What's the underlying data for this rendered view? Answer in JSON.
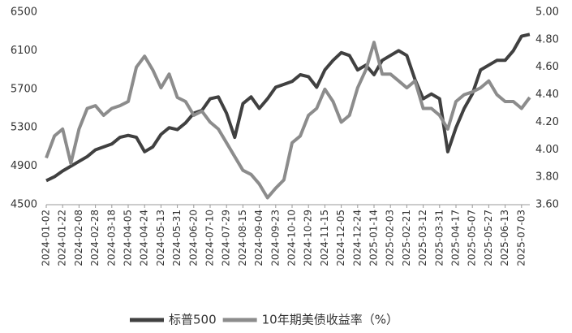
{
  "chart_data": {
    "type": "line",
    "categories": [
      "2024-01-02",
      null,
      "2024-01-22",
      null,
      "2024-02-08",
      null,
      "2024-02-28",
      null,
      "2024-03-18",
      null,
      "2024-04-05",
      null,
      "2024-04-24",
      null,
      "2024-05-13",
      null,
      "2024-05-31",
      null,
      "2024-06-20",
      null,
      "2024-07-10",
      null,
      "2024-07-29",
      null,
      "2024-08-15",
      null,
      "2024-09-04",
      null,
      "2024-09-23",
      null,
      "2024-10-10",
      null,
      "2024-10-29",
      null,
      "2024-11-15",
      null,
      "2024-12-05",
      null,
      "2024-12-24",
      null,
      "2025-01-14",
      null,
      "2025-02-03",
      null,
      "2025-02-21",
      null,
      "2025-03-12",
      null,
      "2025-03-31",
      null,
      "2025-04-17",
      null,
      "2025-05-07",
      null,
      "2025-05-27",
      null,
      "2025-06-13",
      null,
      "2025-07-03",
      null
    ],
    "series": [
      {
        "name": "标普500",
        "color": "#404040",
        "values": [
          4750,
          4790,
          4850,
          4900,
          4950,
          5000,
          5070,
          5100,
          5130,
          5200,
          5220,
          5200,
          5050,
          5100,
          5230,
          5300,
          5280,
          5350,
          5450,
          5480,
          5600,
          5620,
          5450,
          5200,
          5550,
          5620,
          5500,
          5600,
          5720,
          5750,
          5780,
          5850,
          5830,
          5720,
          5900,
          6000,
          6080,
          6050,
          5900,
          5950,
          5850,
          6000,
          6050,
          6100,
          6050,
          5800,
          5600,
          5650,
          5600,
          5050,
          5300,
          5500,
          5650,
          5900,
          5950,
          6000,
          6000,
          6100,
          6250,
          6270
        ]
      },
      {
        "name": "10年期美债收益率（%）",
        "color": "#8c8c8c",
        "axis": "y2",
        "values": [
          3.94,
          4.1,
          4.15,
          3.9,
          4.15,
          4.3,
          4.32,
          4.25,
          4.3,
          4.32,
          4.35,
          4.6,
          4.68,
          4.58,
          4.45,
          4.55,
          4.38,
          4.35,
          4.25,
          4.28,
          4.2,
          4.15,
          4.05,
          3.95,
          3.85,
          3.82,
          3.75,
          3.65,
          3.72,
          3.78,
          4.05,
          4.1,
          4.25,
          4.3,
          4.44,
          4.35,
          4.2,
          4.25,
          4.45,
          4.58,
          4.78,
          4.55,
          4.55,
          4.5,
          4.45,
          4.5,
          4.3,
          4.3,
          4.25,
          4.15,
          4.35,
          4.4,
          4.42,
          4.45,
          4.5,
          4.4,
          4.35,
          4.35,
          4.3,
          4.38
        ]
      }
    ],
    "ylim": [
      4500,
      6500
    ],
    "yticks": [
      4500,
      4900,
      5300,
      5700,
      6100,
      6500
    ],
    "y2lim": [
      3.6,
      5.0
    ],
    "y2ticks": [
      {
        "value": 3.6,
        "label": "3.60"
      },
      {
        "value": 3.8,
        "label": "3.80"
      },
      {
        "value": 4.0,
        "label": "4.00"
      },
      {
        "value": 4.2,
        "label": "4.20"
      },
      {
        "value": 4.4,
        "label": "4.40"
      },
      {
        "value": 4.6,
        "label": "4.60"
      },
      {
        "value": 4.8,
        "label": "4.80"
      },
      {
        "value": 5.0,
        "label": "5.00"
      }
    ],
    "legend": "bottom"
  }
}
